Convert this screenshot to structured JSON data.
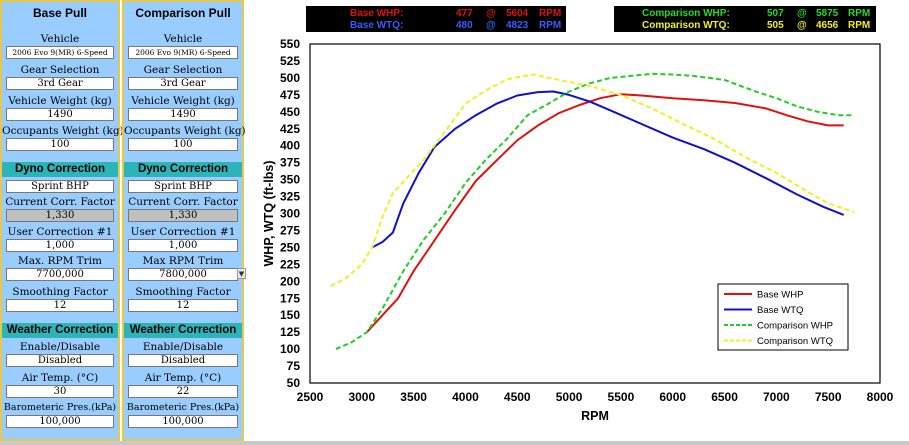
{
  "base_panel": {
    "title": "Base Pull",
    "vehicle_label": "Vehicle",
    "vehicle_value": "2006 Evo 9(MR) 6-Speed",
    "gear_label": "Gear Selection",
    "gear_value": "3rd Gear",
    "weight_label": "Vehicle Weight (kg)",
    "weight_value": "1490",
    "occupants_label": "Occupants Weight (kg)",
    "occupants_value": "100",
    "dyno_header": "Dyno Correction",
    "dyno_value": "Sprint BHP",
    "corr_label": "Current Corr. Factor",
    "corr_value": "1,330",
    "user_corr_label": "User Correction #1",
    "user_corr_value": "1,000",
    "rpm_trim_label": "Max. RPM Trim",
    "rpm_trim_value": "7700,000",
    "smoothing_label": "Smoothing Factor",
    "smoothing_value": "12",
    "weather_header": "Weather Correction",
    "enable_label": "Enable/Disable",
    "enable_value": "Disabled",
    "air_temp_label": "Air Temp. (°C)",
    "air_temp_value": "30",
    "baro_label": "Barometeric Pres.(kPa)",
    "baro_value": "100,000"
  },
  "comp_panel": {
    "title": "Comparison Pull",
    "vehicle_label": "Vehicle",
    "vehicle_value": "2006 Evo 9(MR) 6-Speed",
    "gear_label": "Gear Selection",
    "gear_value": "3rd Gear",
    "weight_label": "Vehicle Weight (kg)",
    "weight_value": "1490",
    "occupants_label": "Occupants Weight (kg)",
    "occupants_value": "100",
    "dyno_header": "Dyno Correction",
    "dyno_value": "Sprint BHP",
    "corr_label": "Current Corr. Factor",
    "corr_value": "1,330",
    "user_corr_label": "User Correction #1",
    "user_corr_value": "1,000",
    "rpm_trim_label": "Max RPM Trim",
    "rpm_trim_value": "7800,000",
    "smoothing_label": "Smoothing Factor",
    "smoothing_value": "12",
    "weather_header": "Weather Correction",
    "enable_label": "Enable/Disable",
    "enable_value": "Disabled",
    "air_temp_label": "Air Temp. (°C)",
    "air_temp_value": "22",
    "baro_label": "Barometeric Pres.(kPa)",
    "baro_value": "100,000"
  },
  "peak_summary": {
    "at_symbol": "@",
    "rpm_unit": "RPM",
    "base_whp_label": "Base WHP:",
    "base_whp_value": "477",
    "base_whp_rpm": "5604",
    "base_wtq_label": "Base WTQ:",
    "base_wtq_value": "480",
    "base_wtq_rpm": "4823",
    "comp_whp_label": "Comparison WHP:",
    "comp_whp_value": "507",
    "comp_whp_rpm": "5875",
    "comp_wtq_label": "Comparison WTQ:",
    "comp_wtq_value": "505",
    "comp_wtq_rpm": "4656"
  },
  "colors": {
    "base_whp": "#e01010",
    "base_wtq": "#1010c8",
    "comp_whp": "#22cc22",
    "comp_wtq": "#f0f020",
    "panel_bg": "#99ccff",
    "section_header": "#2bb5b8"
  },
  "chart_data": {
    "type": "line",
    "xlabel": "RPM",
    "ylabel": "WHP, WTQ (ft-lbs)",
    "xlim": [
      2500,
      8000
    ],
    "ylim": [
      50,
      550
    ],
    "xticks": [
      2500,
      3000,
      3500,
      4000,
      4500,
      5000,
      5500,
      6000,
      6500,
      7000,
      7500,
      8000
    ],
    "yticks": [
      50,
      75,
      100,
      125,
      150,
      175,
      200,
      225,
      250,
      275,
      300,
      325,
      350,
      375,
      400,
      425,
      450,
      475,
      500,
      525,
      550
    ],
    "grid": false,
    "legend_position": "bottom-right",
    "series": [
      {
        "name": "Base WHP",
        "color": "#e01010",
        "dash": "solid",
        "x": [
          3050,
          3200,
          3350,
          3500,
          3700,
          3900,
          4100,
          4300,
          4500,
          4700,
          4900,
          5100,
          5300,
          5500,
          5700,
          6000,
          6300,
          6600,
          6900,
          7100,
          7300,
          7500,
          7650
        ],
        "y": [
          125,
          150,
          175,
          215,
          260,
          305,
          348,
          378,
          408,
          430,
          448,
          460,
          470,
          476,
          474,
          470,
          467,
          463,
          455,
          445,
          436,
          430,
          430
        ]
      },
      {
        "name": "Base WTQ",
        "color": "#1010c8",
        "dash": "solid",
        "x": [
          3100,
          3200,
          3300,
          3400,
          3550,
          3700,
          3900,
          4100,
          4300,
          4500,
          4700,
          4850,
          5000,
          5200,
          5400,
          5700,
          6000,
          6300,
          6600,
          6900,
          7200,
          7450,
          7650
        ],
        "y": [
          250,
          258,
          272,
          315,
          360,
          398,
          425,
          445,
          462,
          474,
          479,
          480,
          475,
          465,
          452,
          432,
          412,
          395,
          375,
          352,
          328,
          310,
          298
        ]
      },
      {
        "name": "Comparison WHP",
        "color": "#22cc22",
        "dash": "dashed",
        "x": [
          2750,
          2900,
          3050,
          3200,
          3400,
          3600,
          3800,
          4000,
          4200,
          4400,
          4600,
          4800,
          5000,
          5200,
          5400,
          5600,
          5800,
          6000,
          6200,
          6500,
          6800,
          7000,
          7200,
          7400,
          7600,
          7750
        ],
        "y": [
          100,
          110,
          125,
          160,
          215,
          262,
          300,
          345,
          380,
          410,
          445,
          462,
          480,
          492,
          500,
          503,
          506,
          505,
          503,
          497,
          480,
          470,
          458,
          450,
          445,
          445
        ]
      },
      {
        "name": "Comparison WTQ",
        "color": "#f0f020",
        "dash": "dashed",
        "x": [
          2700,
          2850,
          3000,
          3100,
          3200,
          3300,
          3450,
          3600,
          3800,
          4000,
          4200,
          4400,
          4650,
          4900,
          5200,
          5500,
          5800,
          6100,
          6400,
          6700,
          7000,
          7300,
          7500,
          7750
        ],
        "y": [
          193,
          205,
          225,
          250,
          295,
          330,
          355,
          380,
          420,
          462,
          482,
          498,
          505,
          497,
          488,
          475,
          455,
          432,
          410,
          383,
          360,
          332,
          315,
          302
        ]
      }
    ]
  }
}
